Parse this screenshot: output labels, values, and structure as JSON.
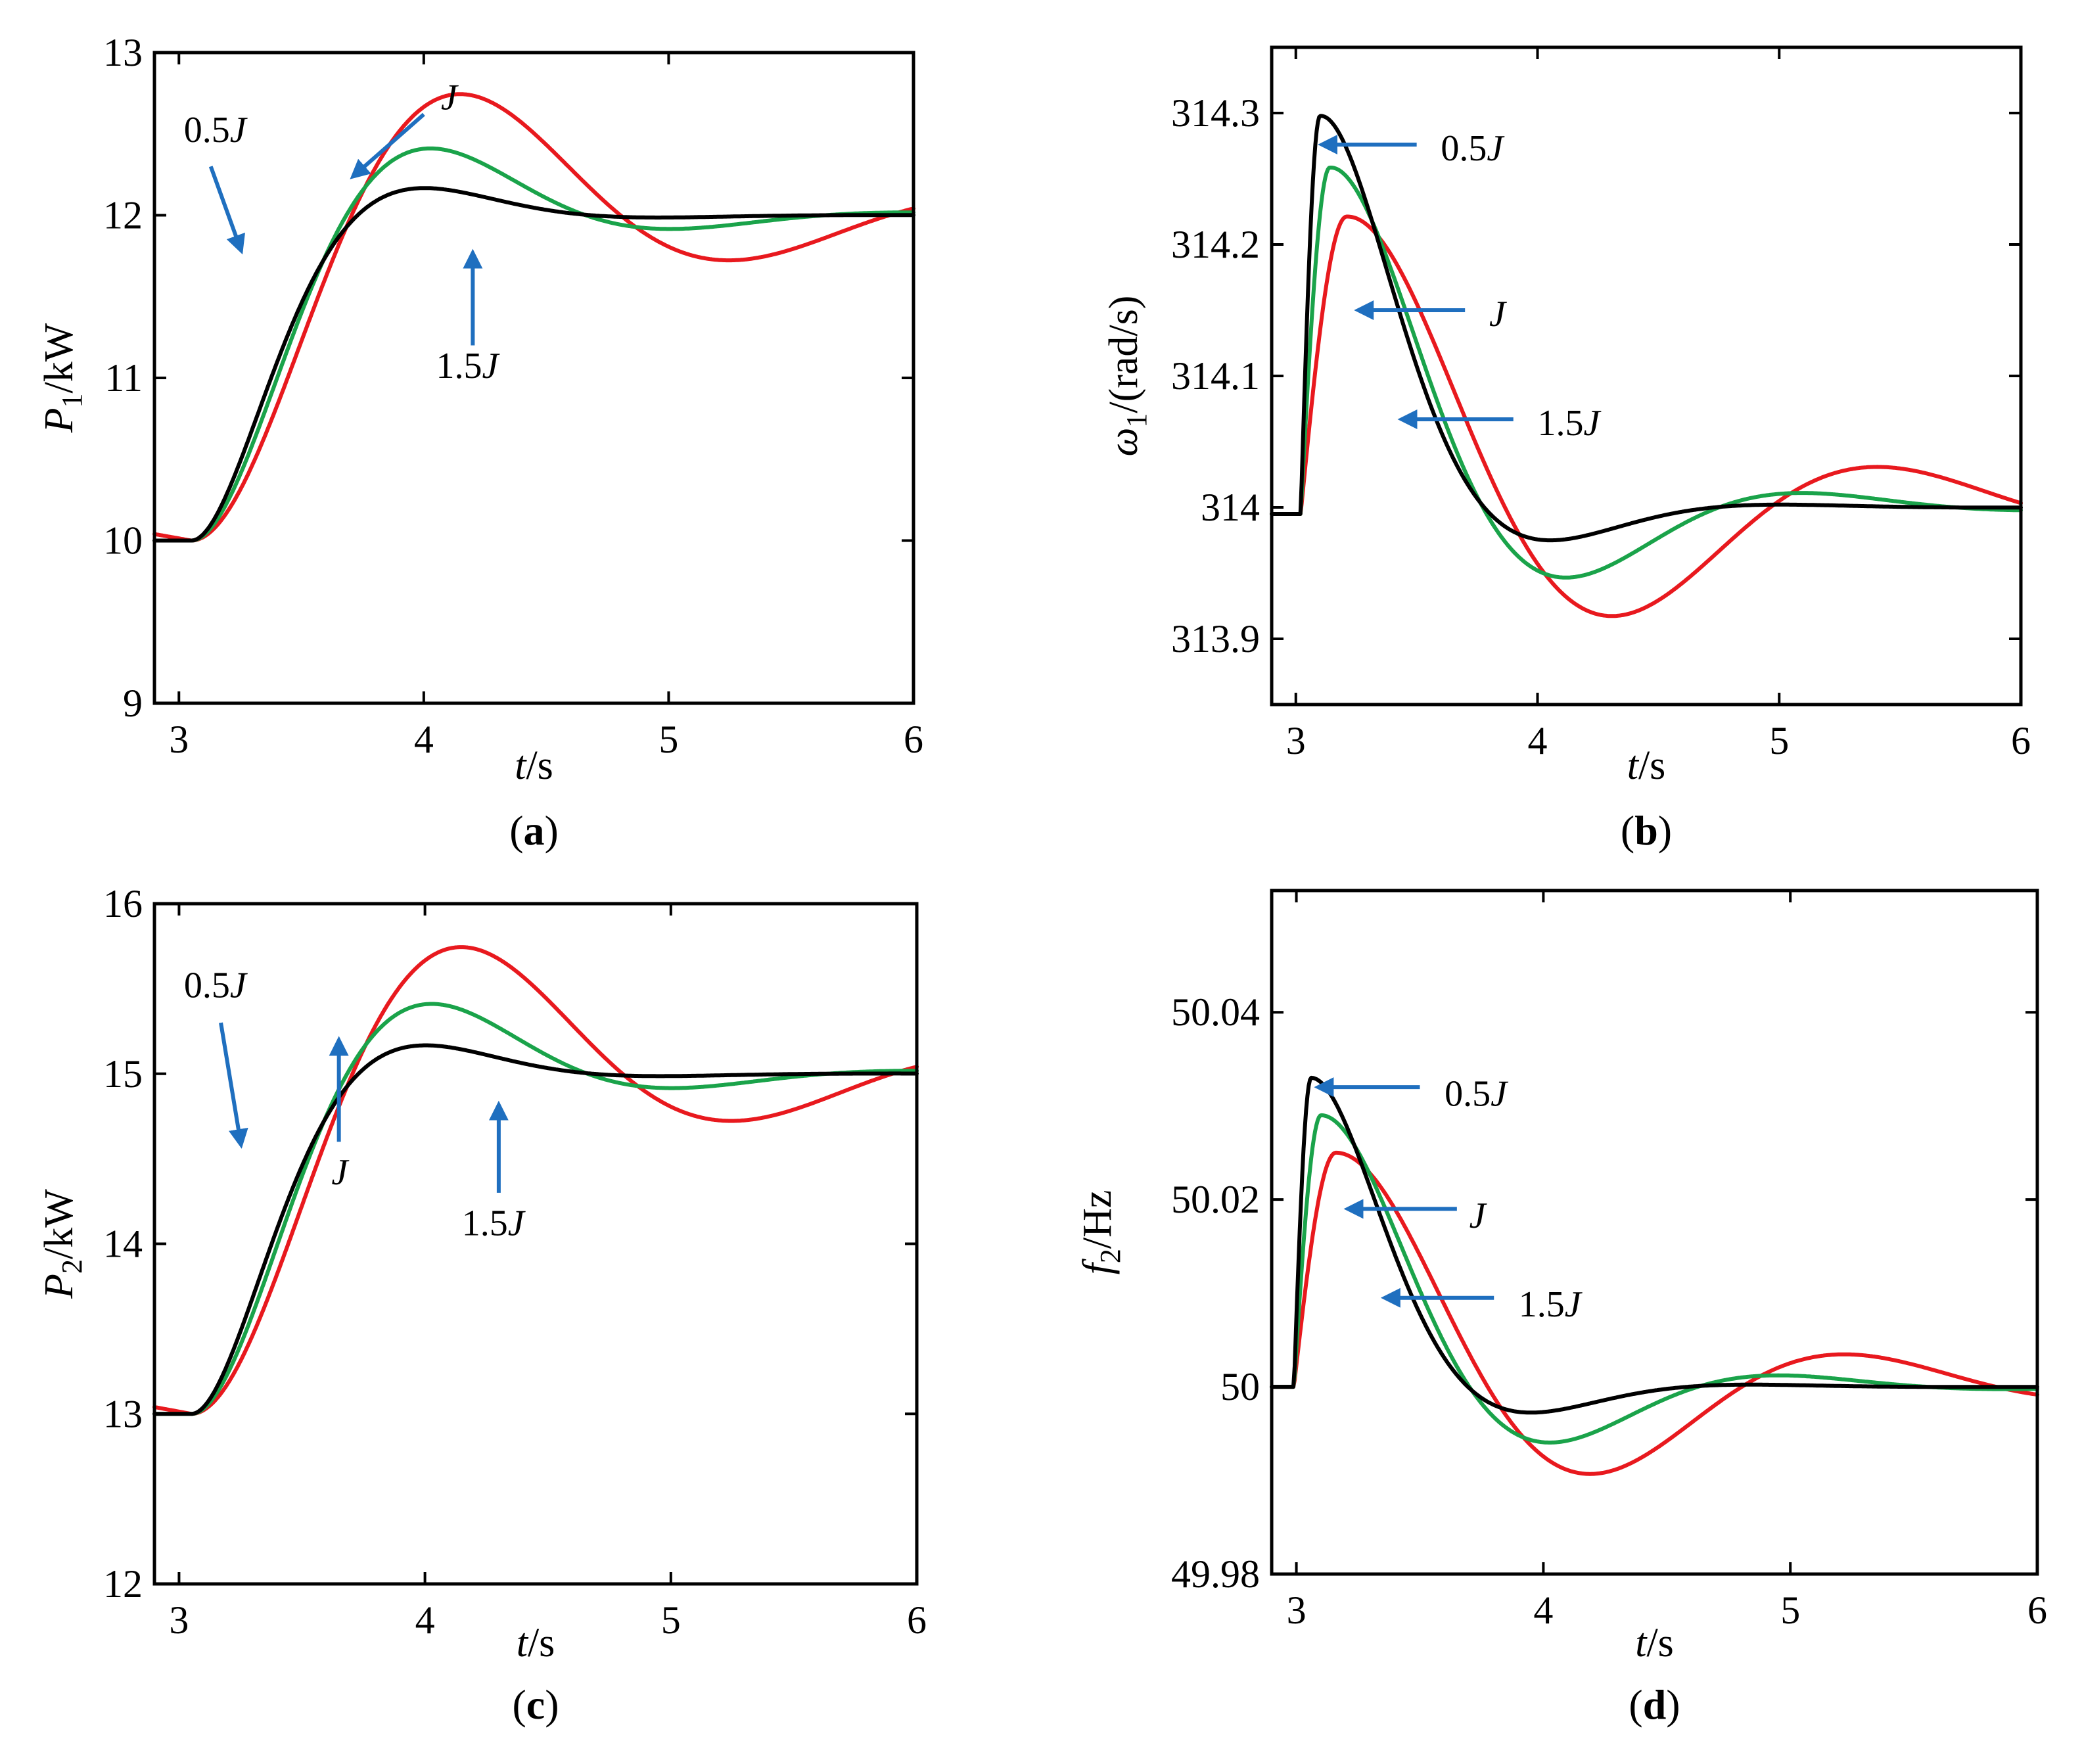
{
  "arrow_color": "#1F6FBF",
  "chart_data": [
    {
      "id": "a",
      "type": "line",
      "caption": "a",
      "xlim": [
        2.9,
        6
      ],
      "ylim": [
        9,
        13
      ],
      "xticks": [
        3,
        4,
        5,
        6
      ],
      "yticks": [
        9,
        10,
        11,
        12,
        13
      ],
      "xlabel": {
        "var": "t",
        "sub": "",
        "unit": "/s"
      },
      "ylabel": {
        "var": "P",
        "sub": "1",
        "unit": "/kW"
      },
      "response": {
        "kind": "power",
        "t0": 3.0,
        "base": 10,
        "final": 12,
        "delay": 0.05,
        "pre_offset": 0.04
      },
      "series": [
        {
          "name": "0.5J",
          "color": "#000000",
          "omega": 4.2,
          "zeta": 0.62,
          "pre": 10.0
        },
        {
          "name": "J",
          "color": "#1AA34A",
          "omega": 3.6,
          "zeta": 0.45,
          "pre": 10.0
        },
        {
          "name": "1.5J",
          "color": "#E8191E",
          "omega": 3.0,
          "zeta": 0.3,
          "pre": 10.04
        }
      ],
      "annotations": [
        {
          "label": "0.5",
          "label_it": "J",
          "arrow_to": [
            3.25,
            11.8
          ],
          "arrow_from": [
            3.13,
            12.3
          ],
          "text_at": [
            3.02,
            12.45
          ],
          "anchor": "start"
        },
        {
          "label": "",
          "label_it": "J",
          "arrow_to": [
            3.72,
            12.25
          ],
          "arrow_from": [
            4.0,
            12.62
          ],
          "text_at": [
            4.07,
            12.65
          ],
          "anchor": "start"
        },
        {
          "label": "1.5",
          "label_it": "J",
          "arrow_to": [
            4.2,
            11.75
          ],
          "arrow_from": [
            4.2,
            11.2
          ],
          "text_at": [
            4.05,
            11.0
          ],
          "anchor": "start"
        }
      ]
    },
    {
      "id": "b",
      "type": "line",
      "caption": "b",
      "xlim": [
        2.9,
        6
      ],
      "ylim": [
        313.85,
        314.35
      ],
      "xticks": [
        3,
        4,
        5,
        6
      ],
      "yticks": [
        313.9,
        314,
        314.1,
        314.2,
        314.3
      ],
      "ytick_labels": [
        "313.9",
        "314",
        "314.1",
        "314.2",
        "314.3"
      ],
      "xlabel": {
        "var": "t",
        "sub": "",
        "unit": "/s"
      },
      "ylabel": {
        "var": "ω",
        "sub": "1",
        "unit": "/(rad/s)"
      },
      "response": {
        "kind": "freq",
        "t0": 3.02,
        "base": 314.0,
        "pre": 313.995
      },
      "series": [
        {
          "name": "0.5J",
          "color": "#000000",
          "peak": 0.3,
          "tpk": 0.08,
          "omega": 4.2,
          "zeta": 0.62
        },
        {
          "name": "J",
          "color": "#1AA34A",
          "peak": 0.26,
          "tpk": 0.12,
          "omega": 3.6,
          "zeta": 0.45
        },
        {
          "name": "1.5J",
          "color": "#E8191E",
          "peak": 0.222,
          "tpk": 0.19,
          "omega": 3.0,
          "zeta": 0.3
        }
      ],
      "annotations": [
        {
          "label": "0.5",
          "label_it": "J",
          "arrow_to": [
            3.12,
            314.276
          ],
          "arrow_from": [
            3.5,
            314.276
          ],
          "text_at": [
            3.6,
            314.264
          ],
          "anchor": "start"
        },
        {
          "label": "",
          "label_it": "J",
          "arrow_to": [
            3.27,
            314.15
          ],
          "arrow_from": [
            3.7,
            314.15
          ],
          "text_at": [
            3.8,
            314.138
          ],
          "anchor": "start"
        },
        {
          "label": "1.5",
          "label_it": "J",
          "arrow_to": [
            3.45,
            314.067
          ],
          "arrow_from": [
            3.9,
            314.067
          ],
          "text_at": [
            4.0,
            314.055
          ],
          "anchor": "start"
        }
      ]
    },
    {
      "id": "c",
      "type": "line",
      "caption": "c",
      "xlim": [
        2.9,
        6
      ],
      "ylim": [
        12,
        16
      ],
      "xticks": [
        3,
        4,
        5,
        6
      ],
      "yticks": [
        12,
        13,
        14,
        15,
        16
      ],
      "xlabel": {
        "var": "t",
        "sub": "",
        "unit": "/s"
      },
      "ylabel": {
        "var": "P",
        "sub": "2",
        "unit": "/kW"
      },
      "response": {
        "kind": "power",
        "t0": 3.0,
        "base": 13,
        "final": 15,
        "delay": 0.05
      },
      "series": [
        {
          "name": "0.5J",
          "color": "#000000",
          "omega": 4.2,
          "zeta": 0.62,
          "pre": 13.0
        },
        {
          "name": "J",
          "color": "#1AA34A",
          "omega": 3.6,
          "zeta": 0.45,
          "pre": 13.0
        },
        {
          "name": "1.5J",
          "color": "#E8191E",
          "omega": 3.0,
          "zeta": 0.3,
          "pre": 13.04
        }
      ],
      "annotations": [
        {
          "label": "0.5",
          "label_it": "J",
          "arrow_to": [
            3.25,
            14.6
          ],
          "arrow_from": [
            3.17,
            15.3
          ],
          "text_at": [
            3.02,
            15.45
          ],
          "anchor": "start"
        },
        {
          "label": "",
          "label_it": "J",
          "arrow_to": [
            3.65,
            15.18
          ],
          "arrow_from": [
            3.65,
            14.6
          ],
          "text_at": [
            3.62,
            14.35
          ],
          "anchor": "start"
        },
        {
          "label": "1.5",
          "label_it": "J",
          "arrow_to": [
            4.3,
            14.8
          ],
          "arrow_from": [
            4.3,
            14.3
          ],
          "text_at": [
            4.15,
            14.05
          ],
          "anchor": "start"
        }
      ]
    },
    {
      "id": "d",
      "type": "line",
      "caption": "d",
      "xlim": [
        2.9,
        6
      ],
      "ylim": [
        49.98,
        50.053
      ],
      "xticks": [
        3,
        4,
        5,
        6
      ],
      "yticks": [
        49.98,
        50,
        50.02,
        50.04
      ],
      "ytick_labels": [
        "49.98",
        "50",
        "50.02",
        "50.04"
      ],
      "xlabel": {
        "var": "t",
        "sub": "",
        "unit": "/s"
      },
      "ylabel": {
        "var": "f",
        "sub": "2",
        "unit": "/Hz"
      },
      "response": {
        "kind": "freq",
        "t0": 2.99,
        "base": 50.0,
        "pre": 50.0
      },
      "series": [
        {
          "name": "0.5J",
          "color": "#000000",
          "peak": 0.033,
          "tpk": 0.07,
          "omega": 4.5,
          "zeta": 0.62
        },
        {
          "name": "J",
          "color": "#1AA34A",
          "peak": 0.029,
          "tpk": 0.11,
          "omega": 3.8,
          "zeta": 0.45
        },
        {
          "name": "1.5J",
          "color": "#E8191E",
          "peak": 0.025,
          "tpk": 0.17,
          "omega": 3.2,
          "zeta": 0.3
        }
      ],
      "annotations": [
        {
          "label": "0.5",
          "label_it": "J",
          "arrow_to": [
            3.1,
            50.032
          ],
          "arrow_from": [
            3.5,
            50.032
          ],
          "text_at": [
            3.6,
            50.03
          ],
          "anchor": "start"
        },
        {
          "label": "",
          "label_it": "J",
          "arrow_to": [
            3.22,
            50.019
          ],
          "arrow_from": [
            3.65,
            50.019
          ],
          "text_at": [
            3.7,
            50.017
          ],
          "anchor": "start"
        },
        {
          "label": "1.5",
          "label_it": "J",
          "arrow_to": [
            3.37,
            50.0095
          ],
          "arrow_from": [
            3.8,
            50.0095
          ],
          "text_at": [
            3.9,
            50.0075
          ],
          "anchor": "start"
        }
      ]
    }
  ]
}
